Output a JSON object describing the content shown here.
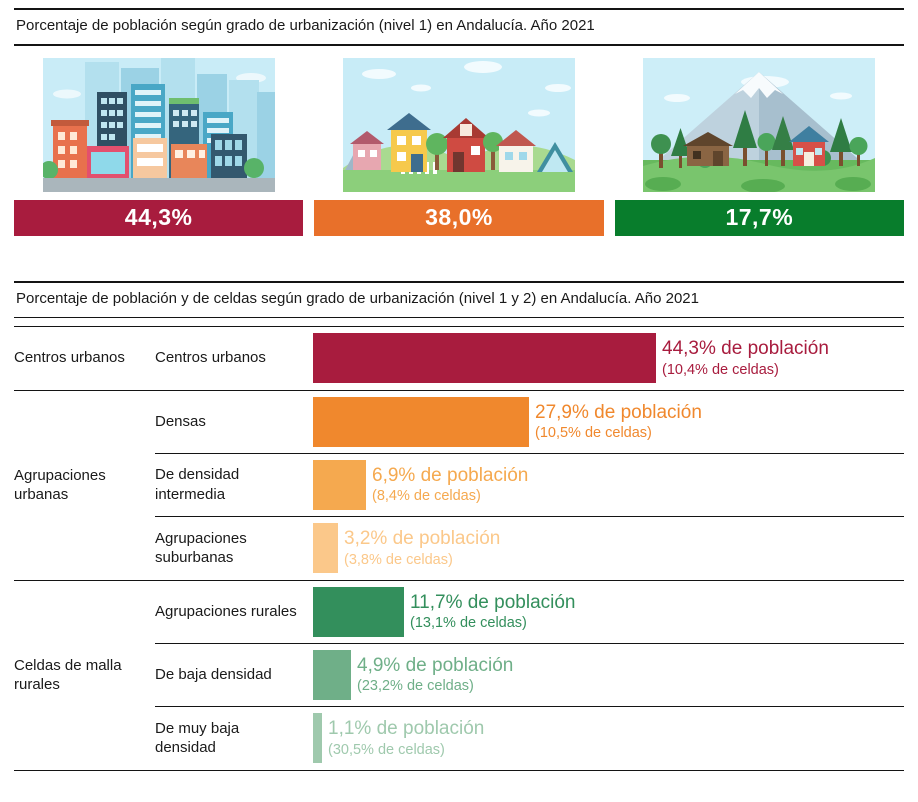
{
  "colors": {
    "line": "#141414",
    "crimson": "#A81C3E",
    "orange": "#E8702A",
    "green": "#087D2C"
  },
  "section1": {
    "title": "Porcentaje de población según grado de urbanización (nivel 1) en Andalucía. Año 2021",
    "cards": [
      {
        "illustration": "city-illustration",
        "value": "44,3%",
        "color": "#A81C3E"
      },
      {
        "illustration": "suburb-illustration",
        "value": "38,0%",
        "color": "#E8702A"
      },
      {
        "illustration": "rural-mountain-illustration",
        "value": "17,7%",
        "color": "#087D2C"
      }
    ]
  },
  "section2": {
    "title": "Porcentaje de población y de celdas según grado de urbanización (nivel 1 y 2) en Andalucía. Año 2021",
    "groups": [
      {
        "label": "Centros urbanos"
      },
      {
        "label": "Agrupaciones urbanas"
      },
      {
        "label": "Celdas de malla rurales"
      }
    ],
    "rows": [
      {
        "label": "Centros urbanos",
        "population_label": "44,3% de población",
        "cells_label": "(10,4% de celdas)",
        "value": 44.3,
        "color": "#A81C3E"
      },
      {
        "label": "Densas",
        "population_label": "27,9% de población",
        "cells_label": "(10,5% de celdas)",
        "value": 27.9,
        "color": "#F0882D"
      },
      {
        "label": "De densidad intermedia",
        "population_label": "6,9% de población",
        "cells_label": "(8,4% de celdas)",
        "value": 6.9,
        "color": "#F5A94F"
      },
      {
        "label": "Agrupaciones suburbanas",
        "population_label": "3,2% de población",
        "cells_label": "(3,8% de celdas)",
        "value": 3.2,
        "color": "#FBC88A"
      },
      {
        "label": "Agrupaciones rurales",
        "population_label": "11,7% de población",
        "cells_label": "(13,1% de celdas)",
        "value": 11.7,
        "color": "#338F5C"
      },
      {
        "label": "De baja densidad",
        "population_label": "4,9% de población",
        "cells_label": "(23,2% de celdas)",
        "value": 4.9,
        "color": "#6FAF88"
      },
      {
        "label": "De muy baja densidad",
        "population_label": "1,1% de población",
        "cells_label": "(30,5% de celdas)",
        "value": 1.1,
        "color": "#9FC9AD"
      }
    ]
  },
  "chart_data": [
    {
      "type": "bar",
      "title": "Porcentaje de población según grado de urbanización (nivel 1) en Andalucía. Año 2021",
      "categories": [
        "Centros urbanos",
        "Agrupaciones urbanas",
        "Celdas de malla rurales"
      ],
      "values": [
        44.3,
        38.0,
        17.7
      ],
      "value_labels": [
        "44,3%",
        "38,0%",
        "17,7%"
      ],
      "unit": "%",
      "colors": [
        "#A81C3E",
        "#E8702A",
        "#087D2C"
      ]
    },
    {
      "type": "bar",
      "title": "Porcentaje de población y de celdas según grado de urbanización (nivel 1 y 2) en Andalucía. Año 2021",
      "categories": [
        "Centros urbanos",
        "Densas",
        "De densidad intermedia",
        "Agrupaciones suburbanas",
        "Agrupaciones rurales",
        "De baja densidad",
        "De muy baja densidad"
      ],
      "groups": [
        "Centros urbanos",
        "Agrupaciones urbanas",
        "Agrupaciones urbanas",
        "Agrupaciones urbanas",
        "Celdas de malla rurales",
        "Celdas de malla rurales",
        "Celdas de malla rurales"
      ],
      "series": [
        {
          "name": "% de población",
          "values": [
            44.3,
            27.9,
            6.9,
            3.2,
            11.7,
            4.9,
            1.1
          ]
        },
        {
          "name": "% de celdas",
          "values": [
            10.4,
            10.5,
            8.4,
            3.8,
            13.1,
            23.2,
            30.5
          ]
        }
      ],
      "orientation": "horizontal",
      "xlim": [
        0,
        50
      ],
      "colors": [
        "#A81C3E",
        "#F0882D",
        "#F5A94F",
        "#FBC88A",
        "#338F5C",
        "#6FAF88",
        "#9FC9AD"
      ]
    }
  ]
}
